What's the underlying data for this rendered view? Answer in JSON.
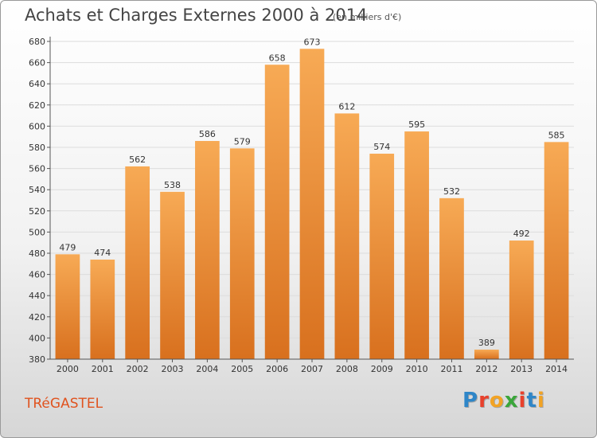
{
  "header": {
    "title": "Achats et Charges Externes 2000 à 2014",
    "subtitle": "(en milliers d'€)"
  },
  "footer": {
    "place": "TRéGASTEL",
    "brand": "Proxiti",
    "brand_colors": [
      "#2e86c8",
      "#e8412c",
      "#f2a324",
      "#3aa63a",
      "#e8412c",
      "#2e86c8",
      "#f2a324"
    ]
  },
  "colors": {
    "bar_top": "#f7aa55",
    "bar_bottom": "#d8701e",
    "grid": "#dcdcdc",
    "axis": "#555555"
  },
  "chart_data": {
    "type": "bar",
    "title": "Achats et Charges Externes 2000 à 2014",
    "subtitle": "(en milliers d'€)",
    "xlabel": "",
    "ylabel": "",
    "categories": [
      "2000",
      "2001",
      "2002",
      "2003",
      "2004",
      "2005",
      "2006",
      "2007",
      "2008",
      "2009",
      "2010",
      "2011",
      "2012",
      "2013",
      "2014"
    ],
    "values": [
      479,
      474,
      562,
      538,
      586,
      579,
      658,
      673,
      612,
      574,
      595,
      532,
      389,
      492,
      585
    ],
    "ylim": [
      380,
      680
    ],
    "yticks": [
      380,
      400,
      420,
      440,
      460,
      480,
      500,
      520,
      540,
      560,
      580,
      600,
      620,
      640,
      660,
      680
    ],
    "grid": true,
    "data_labels": true
  }
}
